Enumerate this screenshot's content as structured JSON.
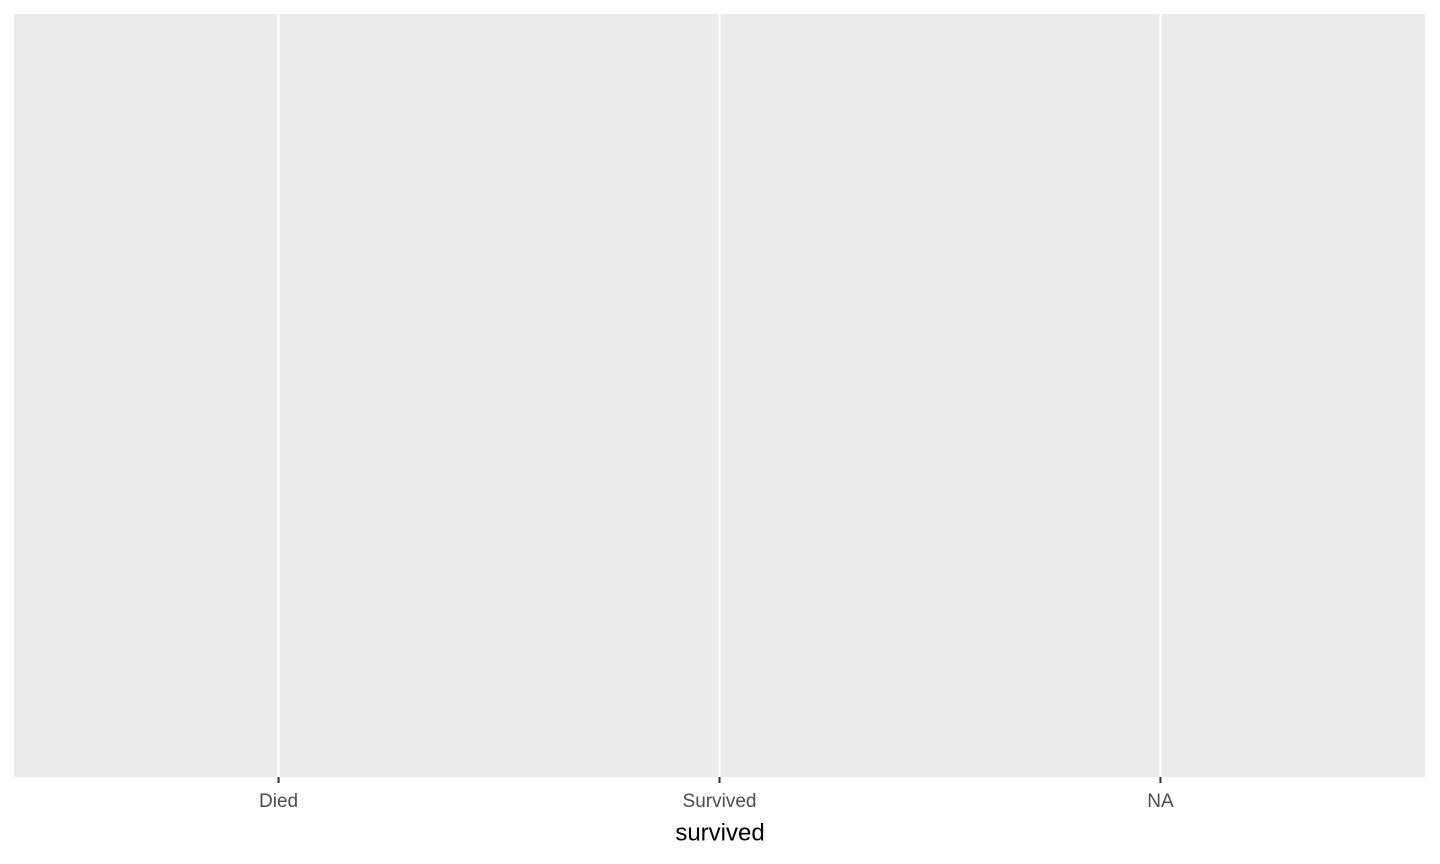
{
  "chart_data": {
    "type": "bar",
    "categories": [
      "Died",
      "Survived",
      "NA"
    ],
    "xlabel": "survived",
    "grid": true
  }
}
